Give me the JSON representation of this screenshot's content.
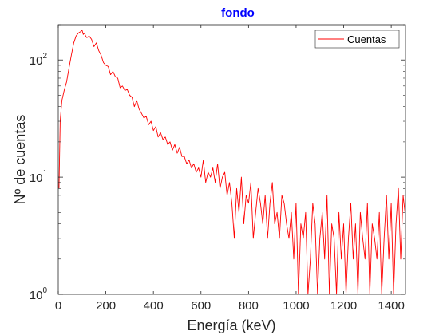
{
  "chart_data": {
    "type": "line",
    "title": "fondo",
    "xlabel": "Energía (keV)",
    "ylabel": "Nº de cuentas",
    "xlim": [
      0,
      1460
    ],
    "ylim": [
      1,
      200
    ],
    "yscale": "log",
    "x_ticks": [
      "0",
      "200",
      "400",
      "600",
      "800",
      "1000",
      "1200",
      "1400"
    ],
    "y_ticks": [
      {
        "base": "10",
        "exp": "0",
        "value": 1
      },
      {
        "base": "10",
        "exp": "1",
        "value": 10
      },
      {
        "base": "10",
        "exp": "2",
        "value": 100
      }
    ],
    "grid": false,
    "legend_position": "top-right",
    "colors": {
      "series": "#ff0000",
      "title": "#0000ff",
      "axis": "#262626"
    },
    "series": [
      {
        "name": "Cuentas",
        "x": [
          3,
          8,
          15,
          25,
          35,
          45,
          55,
          65,
          75,
          85,
          95,
          100,
          105,
          110,
          115,
          120,
          130,
          140,
          150,
          160,
          170,
          180,
          190,
          200,
          210,
          220,
          230,
          240,
          250,
          260,
          270,
          280,
          290,
          300,
          310,
          320,
          330,
          340,
          350,
          360,
          370,
          380,
          390,
          400,
          410,
          420,
          430,
          440,
          450,
          460,
          470,
          480,
          490,
          500,
          510,
          520,
          530,
          540,
          550,
          560,
          570,
          580,
          590,
          600,
          610,
          620,
          630,
          640,
          650,
          660,
          670,
          680,
          690,
          700,
          710,
          720,
          730,
          740,
          750,
          760,
          770,
          780,
          790,
          800,
          810,
          820,
          830,
          840,
          850,
          860,
          870,
          880,
          890,
          900,
          910,
          920,
          930,
          940,
          950,
          960,
          970,
          980,
          990,
          1000,
          1010,
          1020,
          1030,
          1040,
          1050,
          1060,
          1070,
          1080,
          1090,
          1100,
          1110,
          1120,
          1130,
          1140,
          1150,
          1160,
          1170,
          1180,
          1190,
          1200,
          1210,
          1220,
          1230,
          1240,
          1250,
          1260,
          1270,
          1280,
          1290,
          1300,
          1310,
          1320,
          1330,
          1340,
          1350,
          1360,
          1370,
          1380,
          1390,
          1400,
          1410,
          1420,
          1430,
          1440,
          1450,
          1458
        ],
        "y": [
          8,
          30,
          45,
          55,
          65,
          85,
          110,
          140,
          160,
          170,
          175,
          180,
          165,
          170,
          160,
          155,
          160,
          150,
          130,
          140,
          120,
          110,
          95,
          90,
          88,
          75,
          80,
          72,
          70,
          58,
          60,
          55,
          56,
          50,
          48,
          40,
          45,
          38,
          35,
          32,
          33,
          28,
          30,
          25,
          27,
          22,
          24,
          21,
          22,
          19,
          20,
          17,
          19,
          16,
          18,
          15,
          15,
          13,
          14,
          12,
          13,
          11,
          12,
          10,
          14,
          9,
          11,
          10,
          12,
          9,
          13,
          8,
          10,
          11,
          7,
          9,
          6,
          3,
          8,
          5,
          10,
          4,
          7,
          6,
          9,
          3,
          5,
          8,
          6,
          4,
          7,
          3,
          6,
          9,
          4,
          5,
          3,
          7,
          6,
          4,
          3,
          5,
          2,
          6,
          1,
          4,
          3,
          5,
          1,
          2,
          6,
          4,
          1,
          3,
          5,
          2,
          7,
          1,
          4,
          3,
          1,
          5,
          2,
          4,
          1,
          3,
          6,
          2,
          4,
          1,
          5,
          3,
          2,
          6,
          1,
          4,
          3,
          2,
          5,
          1,
          3,
          7,
          2,
          6,
          1,
          4,
          8,
          2,
          7,
          5
        ]
      }
    ]
  }
}
